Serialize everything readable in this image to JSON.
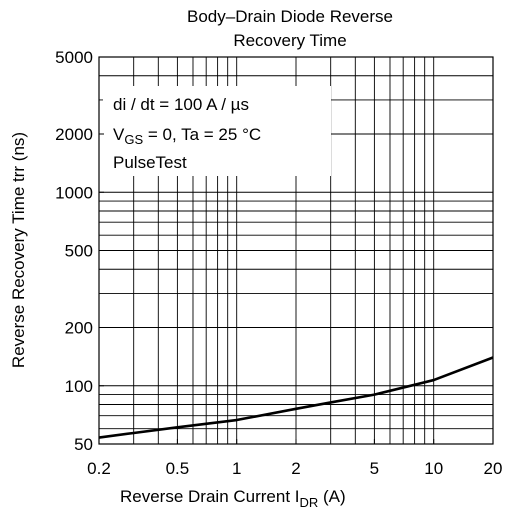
{
  "chart_data": {
    "type": "line",
    "title": [
      "Body–Drain Diode Reverse",
      "Recovery Time"
    ],
    "x_label": {
      "text": "Reverse Drain Current   I",
      "sub": "DR",
      "unit": "  (A)"
    },
    "y_label": "Reverse Recovery Time   trr  (ns)",
    "annotation": {
      "line1": "di / dt = 100 A / µs",
      "line2_pre": "V",
      "line2_sub": "GS",
      "line2_post": " = 0, Ta = 25 °C",
      "line3": "PulseTest"
    },
    "x": [
      0.2,
      0.3,
      0.5,
      1,
      2,
      3,
      5,
      10,
      20
    ],
    "series": [
      {
        "name": "trr",
        "color": "#000000",
        "values": [
          54,
          57,
          61,
          66.5,
          76,
          82,
          90,
          107,
          140
        ]
      }
    ],
    "xlim": [
      0.2,
      20
    ],
    "ylim": [
      50,
      5000
    ],
    "xticks": [
      0.2,
      0.5,
      1,
      2,
      5,
      10,
      20
    ],
    "yticks": [
      50,
      100,
      200,
      500,
      1000,
      2000,
      5000
    ],
    "xgrid": [
      0.3,
      0.4,
      0.5,
      0.6,
      0.7,
      0.8,
      0.9,
      1,
      2,
      3,
      4,
      5,
      6,
      7,
      8,
      9,
      10
    ],
    "ygrid": [
      60,
      70,
      80,
      90,
      100,
      200,
      300,
      400,
      500,
      600,
      700,
      800,
      900,
      1000,
      2000,
      3000,
      4000
    ],
    "xscale": "log",
    "yscale": "log",
    "grid": true
  }
}
